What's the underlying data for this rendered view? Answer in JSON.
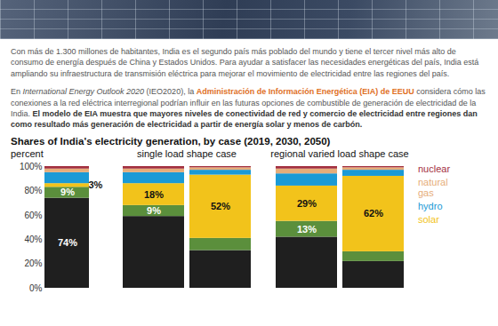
{
  "document": {
    "paragraphs": [
      [
        {
          "text": "Con más de 1.300 millones de habitantes, India es el segundo país más poblado del mundo y tiene el tercer nivel más alto de consumo de energía después de China y Estados Unidos. Para ayudar a satisfacer las necesidades energéticas del país, India está ampliando su infraestructura de transmisión eléctrica para mejorar el movimiento de electricidad entre las regiones del país."
        }
      ],
      [
        {
          "text": "En "
        },
        {
          "text": "International Energy Outlook 2020",
          "style": "italic"
        },
        {
          "text": " (IEO2020), la "
        },
        {
          "text": "Administración de Información Energética (EIA) de EEUU",
          "style": "link"
        },
        {
          "text": " considera cómo las conexiones a la red eléctrica interregional podrían influir en las futuras opciones de combustible de generación de electricidad de la India. "
        },
        {
          "text": "El modelo de EIA muestra que mayores niveles de conectividad de red y comercio de electricidad entre regiones dan como resultado más generación de electricidad a partir de energía solar y menos de carbón.",
          "style": "bold"
        }
      ]
    ]
  },
  "chart_data": {
    "type": "bar",
    "stacked": true,
    "data_labels": true,
    "tick_labels": "y",
    "legend": "right",
    "title": "Shares of India's electricity generation, by case (2019, 2030, 2050)",
    "y_label": "percent",
    "ylim": [
      0,
      100
    ],
    "yticks": [
      {
        "value": 0,
        "label": "0%"
      },
      {
        "value": 20,
        "label": "20%"
      },
      {
        "value": 40,
        "label": "40%"
      },
      {
        "value": 60,
        "label": "60%"
      },
      {
        "value": 80,
        "label": "80%"
      },
      {
        "value": 100,
        "label": "100%"
      }
    ],
    "panels": [
      {
        "title": null,
        "categories": [
          null
        ]
      },
      {
        "title": "single load shape case",
        "categories": [
          null,
          null
        ]
      },
      {
        "title": "regional varied load shape case",
        "categories": [
          null,
          null
        ]
      }
    ],
    "series": [
      {
        "name": null,
        "color": "#1f1f1f",
        "values": [
          74,
          59,
          31,
          42,
          22
        ],
        "value_labels": [
          "74%",
          null,
          null,
          null,
          null
        ]
      },
      {
        "name": null,
        "color": "#5b8f3c",
        "values": [
          9,
          9,
          10,
          13,
          8
        ],
        "value_labels": [
          "9%",
          "9%",
          null,
          "13%",
          null
        ]
      },
      {
        "name": "solar",
        "color": "#f2c31b",
        "values": [
          3,
          18,
          52,
          29,
          62
        ],
        "value_labels": [
          "3%",
          "18%",
          "52%",
          "29%",
          "62%"
        ]
      },
      {
        "name": "hydro",
        "color": "#1b9ad6",
        "values": [
          9,
          9,
          4,
          10,
          5
        ]
      },
      {
        "name": "natural gas",
        "color": "#e6ad7a",
        "values": [
          3,
          3,
          2,
          4,
          2
        ]
      },
      {
        "name": "nuclear",
        "color": "#a3303f",
        "values": [
          2,
          2,
          1,
          2,
          1
        ]
      }
    ]
  }
}
